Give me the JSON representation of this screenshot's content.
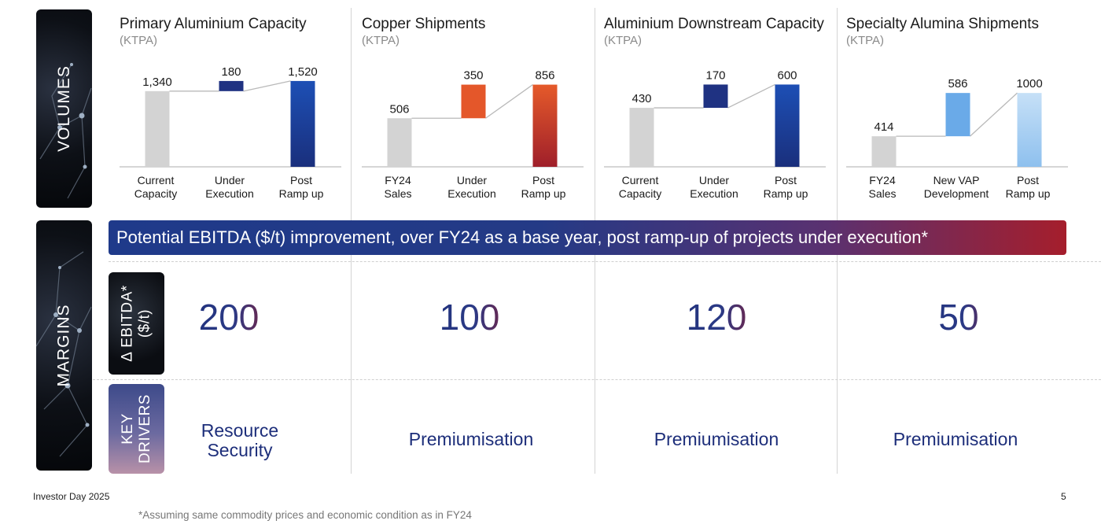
{
  "sections": {
    "volumes_label": "VOLUMES",
    "margins_label": "MARGINS",
    "ebitda_label_line1": "Δ EBITDA*",
    "ebitda_label_line2": "($/t)",
    "drivers_label_line1": "KEY",
    "drivers_label_line2": "DRIVERS"
  },
  "banner": "Potential EBITDA ($/t) improvement, over FY24 as a base year, post ramp-up of projects under execution*",
  "colors": {
    "grey_bar": "#d3d3d3",
    "navy": "#1f3282",
    "blue": "#1448a8",
    "orange": "#e4572a",
    "red": "#b92a2a",
    "light_blue": "#6aaae8",
    "pale_blue": "#b9d7f4"
  },
  "chart_data": [
    {
      "type": "bar",
      "subtype": "waterfall",
      "title": "Primary Aluminium Capacity",
      "unit": "(KTPA)",
      "categories": [
        [
          "Current",
          "Capacity"
        ],
        [
          "Under",
          "Execution"
        ],
        [
          "Post",
          "Ramp up"
        ]
      ],
      "values": [
        1340,
        180,
        1520
      ],
      "labels": [
        "1,340",
        "180",
        "1,520"
      ],
      "roles": [
        "base",
        "increment",
        "total"
      ],
      "colors": [
        "#d3d3d3",
        "#1f3282",
        "blue-gradient"
      ],
      "ylim": [
        0,
        1700
      ]
    },
    {
      "type": "bar",
      "subtype": "waterfall",
      "title": "Copper Shipments",
      "unit": "(KTPA)",
      "categories": [
        [
          "FY24",
          "Sales"
        ],
        [
          "Under",
          "Execution"
        ],
        [
          "Post",
          "Ramp up"
        ]
      ],
      "values": [
        506,
        350,
        856
      ],
      "labels": [
        "506",
        "350",
        "856"
      ],
      "roles": [
        "base",
        "increment",
        "total"
      ],
      "colors": [
        "#d3d3d3",
        "#e4572a",
        "orange-red-gradient"
      ],
      "ylim": [
        0,
        1000
      ]
    },
    {
      "type": "bar",
      "subtype": "waterfall",
      "title": "Aluminium Downstream Capacity",
      "unit": "(KTPA)",
      "categories": [
        [
          "Current",
          "Capacity"
        ],
        [
          "Under",
          "Execution"
        ],
        [
          "Post",
          "Ramp up"
        ]
      ],
      "values": [
        430,
        170,
        600
      ],
      "labels": [
        "430",
        "170",
        "600"
      ],
      "roles": [
        "base",
        "increment",
        "total"
      ],
      "colors": [
        "#d3d3d3",
        "#1f3282",
        "blue-gradient"
      ],
      "ylim": [
        0,
        700
      ]
    },
    {
      "type": "bar",
      "subtype": "waterfall",
      "title": "Specialty Alumina Shipments",
      "unit": "(KTPA)",
      "categories": [
        [
          "FY24",
          "Sales"
        ],
        [
          "New VAP",
          "Development"
        ],
        [
          "Post",
          "Ramp up"
        ]
      ],
      "values": [
        414,
        586,
        1000
      ],
      "labels": [
        "414",
        "586",
        "1000"
      ],
      "roles": [
        "base",
        "increment",
        "total"
      ],
      "colors": [
        "#d3d3d3",
        "#6aaae8",
        "light-blue-gradient"
      ],
      "ylim": [
        0,
        1300
      ]
    }
  ],
  "margins": [
    "200",
    "100",
    "120",
    "50"
  ],
  "drivers": [
    [
      "Resource",
      "Security"
    ],
    [
      "Premiumisation"
    ],
    [
      "Premiumisation"
    ],
    [
      "Premiumisation"
    ]
  ],
  "footer": {
    "event": "Investor Day 2025",
    "page": "5",
    "note": "*Assuming same commodity prices and economic condition as in FY24"
  }
}
